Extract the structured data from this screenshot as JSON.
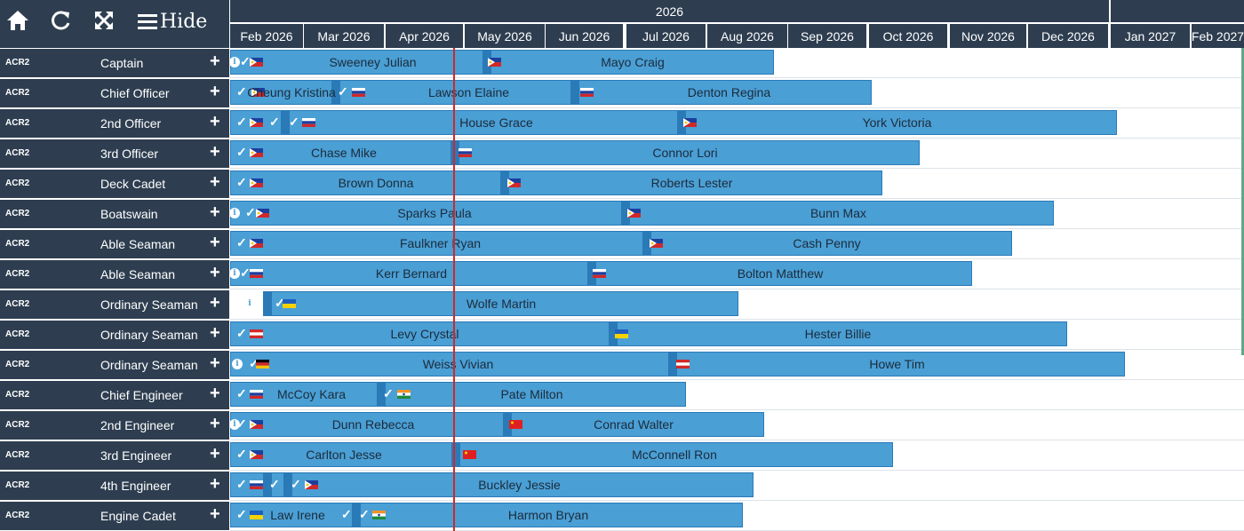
{
  "toolbar": {
    "hide_label": "Hide",
    "icons": [
      "home-icon",
      "refresh-icon",
      "expand-icon",
      "menu-icon"
    ]
  },
  "timeline": {
    "year": "2026",
    "months": [
      "Feb 2026",
      "Mar 2026",
      "Apr 2026",
      "May 2026",
      "Jun 2026",
      "Jul 2026",
      "Aug 2026",
      "Sep 2026",
      "Oct 2026",
      "Nov 2026",
      "Dec 2026",
      "Jan 2027",
      "Feb 2027"
    ],
    "today_marker": "2026-04-28"
  },
  "colors": {
    "header_bg": "#2e3e50",
    "bar_fill": "#4a9fd5",
    "bar_border": "#2a7ab8",
    "today_line": "#d02828"
  },
  "rows": [
    {
      "code": "ACR2",
      "rank": "Captain",
      "crew": [
        "Sweeney Julian",
        "Mayo Craig"
      ]
    },
    {
      "code": "ACR2",
      "rank": "Chief Officer",
      "crew": [
        "Cheung Kristina",
        "Lawson Elaine",
        "Denton Regina"
      ]
    },
    {
      "code": "ACR2",
      "rank": "2nd Officer",
      "crew": [
        "House Grace",
        "York Victoria"
      ]
    },
    {
      "code": "ACR2",
      "rank": "3rd Officer",
      "crew": [
        "Chase Mike",
        "Connor Lori"
      ]
    },
    {
      "code": "ACR2",
      "rank": "Deck Cadet",
      "crew": [
        "Brown Donna",
        "Roberts Lester"
      ]
    },
    {
      "code": "ACR2",
      "rank": "Boatswain",
      "crew": [
        "Sparks Paula",
        "Bunn Max"
      ]
    },
    {
      "code": "ACR2",
      "rank": "Able Seaman",
      "crew": [
        "Faulkner Ryan",
        "Cash Penny"
      ]
    },
    {
      "code": "ACR2",
      "rank": "Able Seaman",
      "crew": [
        "Kerr Bernard",
        "Bolton Matthew"
      ]
    },
    {
      "code": "ACR2",
      "rank": "Ordinary Seaman",
      "crew": [
        "Wolfe Martin"
      ]
    },
    {
      "code": "ACR2",
      "rank": "Ordinary Seaman",
      "crew": [
        "Levy Crystal",
        "Hester Billie"
      ]
    },
    {
      "code": "ACR2",
      "rank": "Ordinary Seaman",
      "crew": [
        "Weiss Vivian",
        "Howe Tim"
      ]
    },
    {
      "code": "ACR2",
      "rank": "Chief Engineer",
      "crew": [
        "McCoy Kara",
        "Pate Milton"
      ]
    },
    {
      "code": "ACR2",
      "rank": "2nd Engineer",
      "crew": [
        "Dunn Rebecca",
        "Conrad Walter"
      ]
    },
    {
      "code": "ACR2",
      "rank": "3rd Engineer",
      "crew": [
        "Carlton Jesse",
        "McConnell Ron"
      ]
    },
    {
      "code": "ACR2",
      "rank": "4th Engineer",
      "crew": [
        "Buckley Jessie"
      ]
    },
    {
      "code": "ACR2",
      "rank": "Engine Cadet",
      "crew": [
        "Law Irene",
        "Harmon Bryan"
      ]
    }
  ]
}
